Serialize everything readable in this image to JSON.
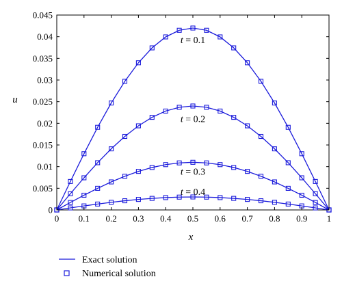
{
  "chart_data": {
    "type": "line",
    "xlabel": "x",
    "ylabel": "u",
    "xlim": [
      0,
      1
    ],
    "ylim": [
      0,
      0.045
    ],
    "x_ticks": [
      "0",
      "0.1",
      "0.2",
      "0.3",
      "0.4",
      "0.5",
      "0.6",
      "0.7",
      "0.8",
      "0.9",
      "1"
    ],
    "y_ticks": [
      "0",
      "0.005",
      "0.01",
      "0.015",
      "0.02",
      "0.025",
      "0.03",
      "0.035",
      "0.04",
      "0.045"
    ],
    "grid": false,
    "legend_placement": "bottom-left, outside plot",
    "line_color": "#1a1adb",
    "legend": {
      "exact_label": "Exact solution",
      "numerical_label": "Numerical solution"
    },
    "x": [
      0,
      0.05,
      0.1,
      0.15,
      0.2,
      0.25,
      0.3,
      0.35,
      0.4,
      0.45,
      0.5,
      0.55,
      0.6,
      0.65,
      0.7,
      0.75,
      0.8,
      0.85,
      0.9,
      0.95,
      1
    ],
    "series": [
      {
        "peak": 0.042,
        "annotation": {
          "var": "t",
          "rest": " = 0.1",
          "x": 0.5,
          "y": 0.0385
        },
        "exact": [
          0,
          0.00657,
          0.01298,
          0.01907,
          0.02469,
          0.0297,
          0.03398,
          0.03742,
          0.03995,
          0.04148,
          0.042,
          0.04148,
          0.03995,
          0.03742,
          0.03398,
          0.0297,
          0.02469,
          0.01907,
          0.01298,
          0.00657,
          0
        ],
        "numerical": [
          0,
          0.00657,
          0.01298,
          0.01907,
          0.02469,
          0.0297,
          0.03398,
          0.03742,
          0.03995,
          0.04148,
          0.042,
          0.04148,
          0.03995,
          0.03742,
          0.03398,
          0.0297,
          0.02469,
          0.01907,
          0.01298,
          0.00657,
          0
        ]
      },
      {
        "peak": 0.024,
        "annotation": {
          "var": "t",
          "rest": " = 0.2",
          "x": 0.5,
          "y": 0.0203
        },
        "exact": [
          0,
          0.00375,
          0.00742,
          0.0109,
          0.01411,
          0.01697,
          0.01942,
          0.02138,
          0.02283,
          0.0237,
          0.024,
          0.0237,
          0.02283,
          0.02138,
          0.01942,
          0.01697,
          0.01411,
          0.0109,
          0.00742,
          0.00375,
          0
        ],
        "numerical": [
          0,
          0.00375,
          0.00742,
          0.0109,
          0.01411,
          0.01697,
          0.01942,
          0.02138,
          0.02283,
          0.0237,
          0.024,
          0.0237,
          0.02283,
          0.02138,
          0.01942,
          0.01697,
          0.01411,
          0.0109,
          0.00742,
          0.00375,
          0
        ]
      },
      {
        "peak": 0.011,
        "annotation": {
          "var": "t",
          "rest": " = 0.3",
          "x": 0.5,
          "y": 0.0081
        },
        "exact": [
          0,
          0.00172,
          0.0034,
          0.00499,
          0.00647,
          0.00778,
          0.0089,
          0.0098,
          0.01046,
          0.01086,
          0.011,
          0.01086,
          0.01046,
          0.0098,
          0.0089,
          0.00778,
          0.00647,
          0.00499,
          0.0034,
          0.00172,
          0
        ],
        "numerical": [
          0,
          0.00172,
          0.0034,
          0.00499,
          0.00647,
          0.00778,
          0.0089,
          0.0098,
          0.01046,
          0.01086,
          0.011,
          0.01086,
          0.01046,
          0.0098,
          0.0089,
          0.00778,
          0.00647,
          0.00499,
          0.0034,
          0.00172,
          0
        ]
      },
      {
        "peak": 0.003,
        "annotation": {
          "var": "t",
          "rest": " = 0.4",
          "x": 0.5,
          "y": 0.0035
        },
        "exact": [
          0,
          0.00047,
          0.00093,
          0.00136,
          0.00176,
          0.00212,
          0.00243,
          0.00267,
          0.00285,
          0.00296,
          0.003,
          0.00296,
          0.00285,
          0.00267,
          0.00243,
          0.00212,
          0.00176,
          0.00136,
          0.00093,
          0.00047,
          0
        ],
        "numerical": [
          0,
          0.00047,
          0.00093,
          0.00136,
          0.00176,
          0.00212,
          0.00243,
          0.00267,
          0.00285,
          0.00296,
          0.003,
          0.00296,
          0.00285,
          0.00267,
          0.00243,
          0.00212,
          0.00176,
          0.00136,
          0.00093,
          0.00047,
          0
        ]
      }
    ]
  }
}
